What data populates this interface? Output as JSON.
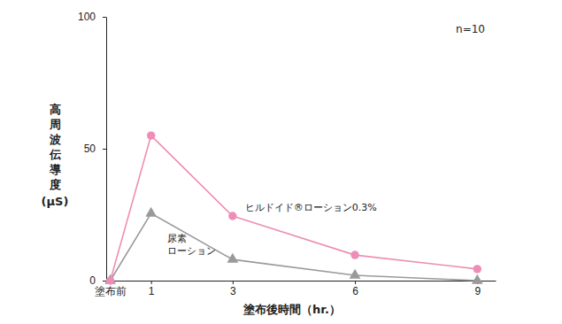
{
  "chart_data": {
    "type": "line",
    "x_label": "塗布後時間（hr.）",
    "y_label": "高周波伝導度(μS)",
    "annotations": [
      "n=10"
    ],
    "x": [
      0,
      1,
      3,
      6,
      9
    ],
    "xlim": [
      -0.1,
      9.45
    ],
    "xticks": [
      {
        "value": 0,
        "label": "塗布前"
      },
      1,
      3,
      6,
      9
    ],
    "ylim": [
      0,
      100
    ],
    "yticks": [
      0,
      50,
      100
    ],
    "grid": false,
    "series": [
      {
        "name": "ヒルドイド®ローション0.3%",
        "color": "#ee8db5",
        "marker": "circle",
        "values": [
          0,
          55,
          24.5,
          9.7,
          4.4
        ]
      },
      {
        "name": "尿素\nローション",
        "color": "#9a9a9a",
        "marker": "triangle",
        "values": [
          0,
          25.5,
          8,
          2,
          0
        ]
      }
    ]
  }
}
